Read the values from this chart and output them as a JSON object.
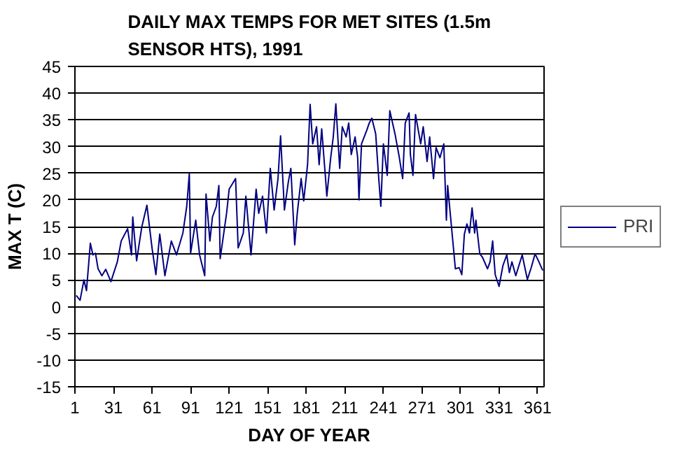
{
  "chart_data": {
    "type": "line",
    "title": "DAILY MAX TEMPS FOR MET SITES (1.5m SENSOR HTS), 1991",
    "xlabel": "DAY OF YEAR",
    "ylabel": "MAX T (C)",
    "xlim": [
      1,
      366
    ],
    "xticks": [
      1,
      31,
      61,
      91,
      121,
      151,
      181,
      211,
      241,
      271,
      301,
      331,
      361
    ],
    "ylim": [
      -15,
      45
    ],
    "yticks": [
      -15,
      -10,
      -5,
      0,
      5,
      10,
      15,
      20,
      25,
      30,
      35,
      40,
      45
    ],
    "grid": "y",
    "legend": "right",
    "marker": "none",
    "line_style": "solid",
    "series": [
      {
        "name": "PRI",
        "color": "#000080",
        "x": [
          2,
          5,
          8,
          10,
          13,
          15,
          17,
          19,
          22,
          25,
          29,
          34,
          37,
          42,
          45,
          46,
          49,
          53,
          57,
          61,
          64,
          67,
          71,
          76,
          80,
          85,
          88,
          90,
          91,
          95,
          98,
          102,
          103,
          106,
          108,
          111,
          113,
          114,
          119,
          121,
          126,
          128,
          132,
          134,
          138,
          142,
          144,
          147,
          150,
          153,
          156,
          159,
          161,
          164,
          167,
          169,
          172,
          174,
          177,
          179,
          182,
          184,
          186,
          189,
          191,
          193,
          196,
          197,
          200,
          202,
          204,
          207,
          209,
          212,
          214,
          216,
          219,
          221,
          222,
          224,
          228,
          230,
          232,
          235,
          237,
          239,
          241,
          244,
          246,
          250,
          253,
          256,
          258,
          261,
          262,
          264,
          266,
          270,
          272,
          275,
          277,
          280,
          282,
          285,
          288,
          290,
          291,
          293,
          296,
          297,
          300,
          302,
          304,
          306,
          308,
          310,
          312,
          313,
          316,
          318,
          322,
          324,
          326,
          328,
          331,
          334,
          337,
          339,
          341,
          344,
          349,
          353,
          356,
          359,
          362,
          364,
          365
        ],
        "values": [
          2.1,
          1.2,
          5,
          3,
          11.9,
          9.7,
          10,
          7.1,
          5.8,
          7,
          4.7,
          8.4,
          12.3,
          14.6,
          9.7,
          16.8,
          8.6,
          14.9,
          19,
          11,
          6,
          13.6,
          5.8,
          12.3,
          9.7,
          13.8,
          18.8,
          24.9,
          10,
          16.2,
          9.7,
          5.8,
          21.1,
          12.3,
          16.8,
          18.8,
          22.7,
          9,
          17.5,
          22,
          24,
          11,
          13.8,
          20.7,
          9.7,
          22,
          17.5,
          20.7,
          13.8,
          25.9,
          18.1,
          24,
          32,
          18.1,
          23.3,
          25.9,
          11.6,
          17.5,
          24,
          19.8,
          26.6,
          37.9,
          30.5,
          33.7,
          26.6,
          33.3,
          24,
          20.7,
          27.9,
          31.8,
          38,
          25.9,
          33.7,
          31.8,
          34.4,
          28.5,
          31.8,
          27.9,
          20,
          30.5,
          33,
          34.4,
          35.3,
          32.4,
          25.3,
          18.8,
          30.5,
          24.6,
          36.7,
          32.4,
          28.5,
          24,
          34.4,
          36.3,
          28.5,
          24.6,
          36,
          30.5,
          33.7,
          27.2,
          31.8,
          24,
          29.8,
          27.9,
          30.5,
          16.2,
          22.7,
          17.5,
          9.7,
          7.1,
          7.3,
          6,
          13.6,
          15.5,
          13.8,
          18.5,
          13.8,
          16.2,
          9.9,
          9.3,
          7.1,
          8.4,
          12.3,
          6,
          3.8,
          7.7,
          9.7,
          6.4,
          8.4,
          5.8,
          9.7,
          5.1,
          7.3,
          9.9,
          8.4,
          7.3,
          6.8
        ]
      }
    ]
  }
}
